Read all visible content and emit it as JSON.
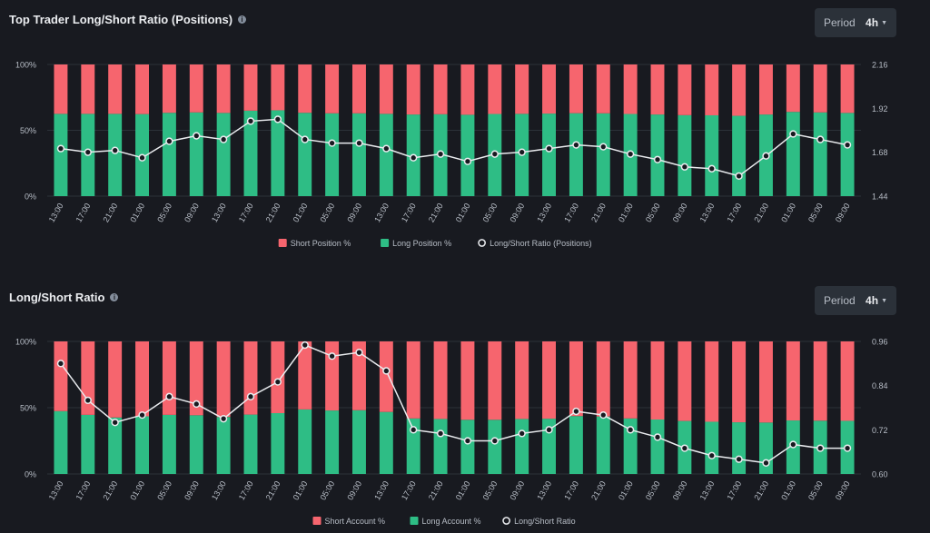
{
  "charts": {
    "c1": {
      "title": "Top Trader Long/Short Ratio (Positions)",
      "period_label": "Period",
      "period_value": "4h",
      "colors": {
        "short": "#f6656e",
        "long": "#2ebd85",
        "line": "#eaecef",
        "grid": "#2b3139",
        "text": "#b7bdc6"
      }
    },
    "c2": {
      "title": "Long/Short Ratio",
      "period_label": "Period",
      "period_value": "4h",
      "colors": {
        "short": "#f6656e",
        "long": "#2ebd85",
        "line": "#eaecef",
        "grid": "#2b3139",
        "text": "#b7bdc6"
      }
    }
  },
  "chart_data": [
    {
      "type": "bar",
      "stacked": true,
      "title": "Top Trader Long/Short Ratio (Positions)",
      "categories": [
        "13:00",
        "17:00",
        "21:00",
        "01:00",
        "05:00",
        "09:00",
        "13:00",
        "17:00",
        "21:00",
        "01:00",
        "05:00",
        "09:00",
        "13:00",
        "17:00",
        "21:00",
        "01:00",
        "05:00",
        "09:00",
        "13:00",
        "17:00",
        "21:00",
        "01:00",
        "05:00",
        "09:00",
        "13:00",
        "17:00",
        "21:00",
        "01:00",
        "05:00",
        "09:00"
      ],
      "left_axis": {
        "ticks": [
          "0%",
          "50%",
          "100%"
        ],
        "ylim": [
          0,
          100
        ]
      },
      "right_axis": {
        "ticks": [
          "1.44",
          "1.68",
          "1.92",
          "2.16"
        ],
        "ylim": [
          1.44,
          2.16
        ]
      },
      "legend": [
        "Short Position %",
        "Long Position %",
        "Long/Short Ratio (Positions)"
      ],
      "legend_position": "bottom",
      "series": [
        {
          "name": "Long Position %",
          "axis": "left",
          "values": [
            62.5,
            62.5,
            62.5,
            62.3,
            63.3,
            63.6,
            63.2,
            64.9,
            65.2,
            63.3,
            62.9,
            62.9,
            62.5,
            62.0,
            62.2,
            61.8,
            62.4,
            62.5,
            62.7,
            63.0,
            62.9,
            62.4,
            62.0,
            61.5,
            61.4,
            61.0,
            62.0,
            64.0,
            63.6,
            63.2
          ]
        },
        {
          "name": "Short Position %",
          "axis": "left",
          "values": [
            37.5,
            37.5,
            37.5,
            37.7,
            36.7,
            36.4,
            36.8,
            35.1,
            34.8,
            36.7,
            37.1,
            37.1,
            37.5,
            38.0,
            37.8,
            38.2,
            37.6,
            37.5,
            37.3,
            37.0,
            37.1,
            37.6,
            38.0,
            38.5,
            38.6,
            39.0,
            38.0,
            36.0,
            36.4,
            36.8
          ]
        },
        {
          "name": "Long/Short Ratio (Positions)",
          "type": "line",
          "axis": "right",
          "values": [
            1.7,
            1.68,
            1.69,
            1.65,
            1.74,
            1.77,
            1.75,
            1.85,
            1.86,
            1.75,
            1.73,
            1.73,
            1.7,
            1.65,
            1.67,
            1.63,
            1.67,
            1.68,
            1.7,
            1.72,
            1.71,
            1.67,
            1.64,
            1.6,
            1.59,
            1.55,
            1.66,
            1.78,
            1.75,
            1.72
          ]
        }
      ]
    },
    {
      "type": "bar",
      "stacked": true,
      "title": "Long/Short Ratio",
      "categories": [
        "13:00",
        "17:00",
        "21:00",
        "01:00",
        "05:00",
        "09:00",
        "13:00",
        "17:00",
        "21:00",
        "01:00",
        "05:00",
        "09:00",
        "13:00",
        "17:00",
        "21:00",
        "01:00",
        "05:00",
        "09:00",
        "13:00",
        "17:00",
        "21:00",
        "01:00",
        "05:00",
        "09:00",
        "13:00",
        "17:00",
        "21:00",
        "01:00",
        "05:00",
        "09:00"
      ],
      "left_axis": {
        "ticks": [
          "0%",
          "50%",
          "100%"
        ],
        "ylim": [
          0,
          100
        ]
      },
      "right_axis": {
        "ticks": [
          "0.60",
          "0.72",
          "0.84",
          "0.96"
        ],
        "ylim": [
          0.6,
          0.96
        ]
      },
      "legend": [
        "Short Account %",
        "Long Account %",
        "Long/Short Ratio"
      ],
      "legend_position": "bottom",
      "series": [
        {
          "name": "Long Account %",
          "axis": "left",
          "values": [
            47.4,
            44.6,
            42.6,
            43.5,
            44.6,
            44.3,
            43.0,
            44.8,
            45.9,
            48.7,
            47.9,
            48.1,
            46.8,
            41.9,
            41.5,
            40.9,
            40.9,
            41.5,
            41.7,
            43.7,
            43.4,
            41.9,
            41.1,
            40.0,
            39.4,
            39.0,
            38.8,
            40.4,
            40.2,
            40.1
          ]
        },
        {
          "name": "Short Account %",
          "axis": "left",
          "values": [
            52.6,
            55.4,
            57.4,
            56.5,
            55.4,
            55.7,
            57.0,
            55.2,
            54.1,
            51.3,
            52.1,
            51.9,
            53.2,
            58.1,
            58.5,
            59.1,
            59.1,
            58.5,
            58.3,
            56.3,
            56.6,
            58.1,
            58.9,
            60.0,
            60.6,
            61.0,
            61.2,
            59.6,
            59.8,
            59.9
          ]
        },
        {
          "name": "Long/Short Ratio",
          "type": "line",
          "axis": "right",
          "values": [
            0.9,
            0.8,
            0.74,
            0.76,
            0.81,
            0.79,
            0.75,
            0.81,
            0.85,
            0.95,
            0.92,
            0.93,
            0.88,
            0.72,
            0.71,
            0.69,
            0.69,
            0.71,
            0.72,
            0.77,
            0.76,
            0.72,
            0.7,
            0.67,
            0.65,
            0.64,
            0.63,
            0.68,
            0.67,
            0.67
          ]
        }
      ]
    }
  ]
}
